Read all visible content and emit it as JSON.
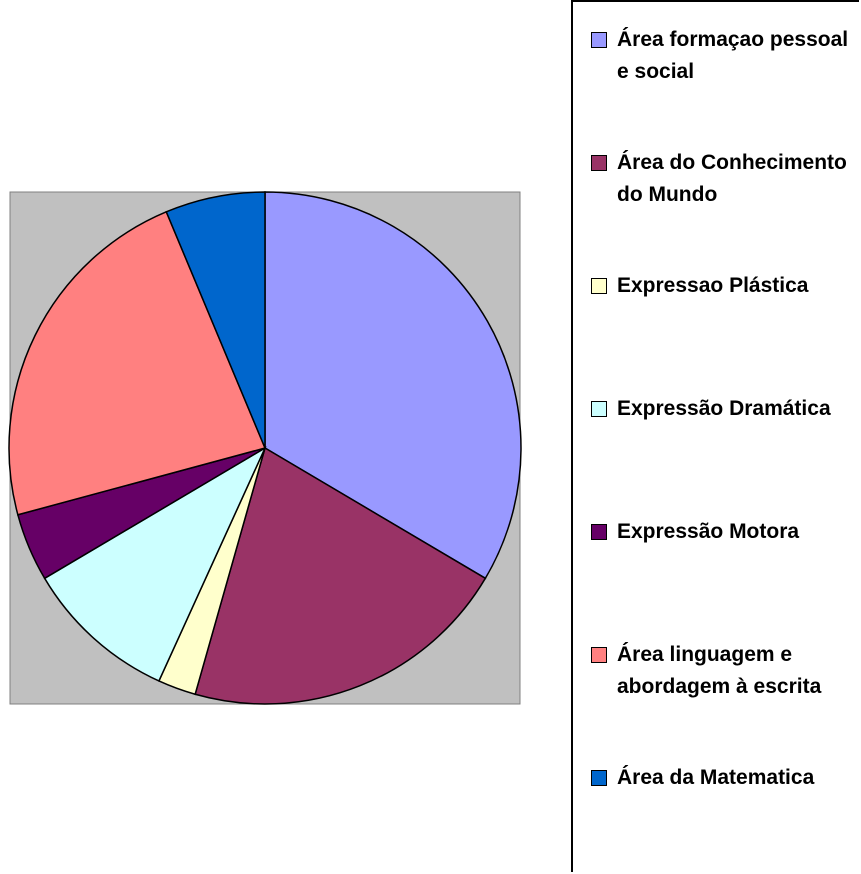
{
  "chart_data": {
    "type": "pie",
    "categories": [
      "Área formaçao pessoal e social",
      "Área do Conhecimento do Mundo",
      "Expressao Plástica",
      "Expressão Dramática",
      "Expressão Motora",
      "Área linguagem e abordagem à escrita",
      "Área da Matematica"
    ],
    "values": [
      33.5,
      20.9,
      2.4,
      9.7,
      4.3,
      22.9,
      6.3
    ],
    "colors": [
      "#9999ff",
      "#993366",
      "#ffffcc",
      "#ccffff",
      "#660066",
      "#ff8080",
      "#0066cc"
    ],
    "legend": "right"
  }
}
